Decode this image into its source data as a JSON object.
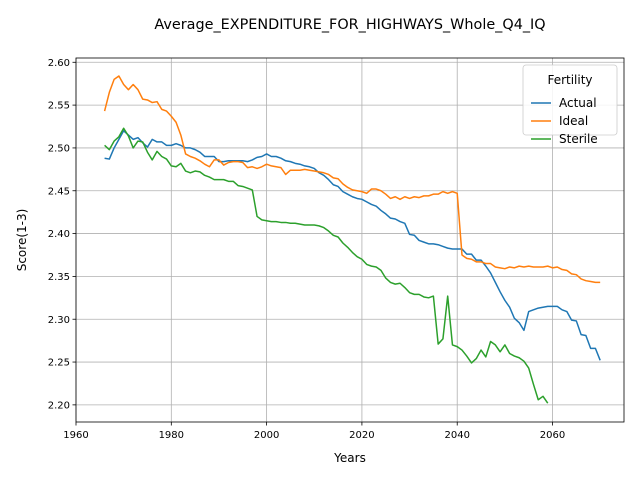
{
  "chart_data": {
    "type": "line",
    "title": "Average_EXPENDITURE_FOR_HIGHWAYS_Whole_Q4_IQ",
    "xlabel": "Years",
    "ylabel": "Score(1-3)",
    "xlim": [
      1960,
      2075
    ],
    "ylim": [
      2.18,
      2.605
    ],
    "xticks": [
      1960,
      1980,
      2000,
      2020,
      2040,
      2060
    ],
    "yticks": [
      2.2,
      2.25,
      2.3,
      2.35,
      2.4,
      2.45,
      2.5,
      2.55,
      2.6
    ],
    "ytick_labels": [
      "2.20",
      "2.25",
      "2.30",
      "2.35",
      "2.40",
      "2.45",
      "2.50",
      "2.55",
      "2.60"
    ],
    "grid": true,
    "legend": {
      "title": "Fertility",
      "position": "top-right"
    },
    "series": [
      {
        "name": "Actual",
        "color": "#1f77b4",
        "points": [
          [
            1966,
            2.488
          ],
          [
            1967,
            2.487
          ],
          [
            1968,
            2.5
          ],
          [
            1969,
            2.51
          ],
          [
            1970,
            2.52
          ],
          [
            1971,
            2.515
          ],
          [
            1972,
            2.51
          ],
          [
            1973,
            2.512
          ],
          [
            1974,
            2.506
          ],
          [
            1975,
            2.501
          ],
          [
            1976,
            2.51
          ],
          [
            1977,
            2.507
          ],
          [
            1978,
            2.507
          ],
          [
            1979,
            2.503
          ],
          [
            1980,
            2.503
          ],
          [
            1981,
            2.505
          ],
          [
            1982,
            2.503
          ],
          [
            1983,
            2.5
          ],
          [
            1984,
            2.5
          ],
          [
            1985,
            2.498
          ],
          [
            1986,
            2.495
          ],
          [
            1987,
            2.49
          ],
          [
            1988,
            2.49
          ],
          [
            1989,
            2.49
          ],
          [
            1990,
            2.484
          ],
          [
            1991,
            2.484
          ],
          [
            1992,
            2.485
          ],
          [
            1993,
            2.485
          ],
          [
            1994,
            2.485
          ],
          [
            1995,
            2.485
          ],
          [
            1996,
            2.484
          ],
          [
            1997,
            2.486
          ],
          [
            1998,
            2.489
          ],
          [
            1999,
            2.49
          ],
          [
            2000,
            2.493
          ],
          [
            2001,
            2.49
          ],
          [
            2002,
            2.49
          ],
          [
            2003,
            2.488
          ],
          [
            2004,
            2.485
          ],
          [
            2005,
            2.484
          ],
          [
            2006,
            2.482
          ],
          [
            2007,
            2.481
          ],
          [
            2008,
            2.479
          ],
          [
            2009,
            2.478
          ],
          [
            2010,
            2.476
          ],
          [
            2011,
            2.471
          ],
          [
            2012,
            2.468
          ],
          [
            2013,
            2.463
          ],
          [
            2014,
            2.457
          ],
          [
            2015,
            2.455
          ],
          [
            2016,
            2.449
          ],
          [
            2017,
            2.446
          ],
          [
            2018,
            2.443
          ],
          [
            2019,
            2.441
          ],
          [
            2020,
            2.44
          ],
          [
            2021,
            2.437
          ],
          [
            2022,
            2.434
          ],
          [
            2023,
            2.432
          ],
          [
            2024,
            2.427
          ],
          [
            2025,
            2.423
          ],
          [
            2026,
            2.418
          ],
          [
            2027,
            2.417
          ],
          [
            2028,
            2.414
          ],
          [
            2029,
            2.412
          ],
          [
            2030,
            2.399
          ],
          [
            2031,
            2.398
          ],
          [
            2032,
            2.392
          ],
          [
            2033,
            2.39
          ],
          [
            2034,
            2.388
          ],
          [
            2035,
            2.388
          ],
          [
            2036,
            2.387
          ],
          [
            2037,
            2.385
          ],
          [
            2038,
            2.383
          ],
          [
            2039,
            2.382
          ],
          [
            2040,
            2.382
          ],
          [
            2041,
            2.382
          ],
          [
            2042,
            2.376
          ],
          [
            2043,
            2.376
          ],
          [
            2044,
            2.369
          ],
          [
            2045,
            2.369
          ],
          [
            2046,
            2.362
          ],
          [
            2047,
            2.354
          ],
          [
            2048,
            2.343
          ],
          [
            2049,
            2.332
          ],
          [
            2050,
            2.322
          ],
          [
            2051,
            2.314
          ],
          [
            2052,
            2.301
          ],
          [
            2053,
            2.296
          ],
          [
            2054,
            2.287
          ],
          [
            2055,
            2.309
          ],
          [
            2056,
            2.311
          ],
          [
            2057,
            2.313
          ],
          [
            2058,
            2.314
          ],
          [
            2059,
            2.315
          ],
          [
            2060,
            2.315
          ],
          [
            2061,
            2.315
          ],
          [
            2062,
            2.311
          ],
          [
            2063,
            2.309
          ],
          [
            2064,
            2.299
          ],
          [
            2065,
            2.298
          ],
          [
            2066,
            2.282
          ],
          [
            2067,
            2.281
          ],
          [
            2068,
            2.266
          ],
          [
            2069,
            2.266
          ],
          [
            2070,
            2.252
          ]
        ]
      },
      {
        "name": "Ideal",
        "color": "#ff7f0e",
        "points": [
          [
            1966,
            2.543
          ],
          [
            1967,
            2.565
          ],
          [
            1968,
            2.58
          ],
          [
            1969,
            2.584
          ],
          [
            1970,
            2.574
          ],
          [
            1971,
            2.568
          ],
          [
            1972,
            2.574
          ],
          [
            1973,
            2.568
          ],
          [
            1974,
            2.557
          ],
          [
            1975,
            2.556
          ],
          [
            1976,
            2.553
          ],
          [
            1977,
            2.554
          ],
          [
            1978,
            2.545
          ],
          [
            1979,
            2.543
          ],
          [
            1980,
            2.537
          ],
          [
            1981,
            2.53
          ],
          [
            1982,
            2.515
          ],
          [
            1983,
            2.493
          ],
          [
            1984,
            2.49
          ],
          [
            1985,
            2.488
          ],
          [
            1986,
            2.485
          ],
          [
            1987,
            2.481
          ],
          [
            1988,
            2.478
          ],
          [
            1989,
            2.486
          ],
          [
            1990,
            2.486
          ],
          [
            1991,
            2.48
          ],
          [
            1992,
            2.483
          ],
          [
            1993,
            2.484
          ],
          [
            1994,
            2.484
          ],
          [
            1995,
            2.483
          ],
          [
            1996,
            2.477
          ],
          [
            1997,
            2.478
          ],
          [
            1998,
            2.476
          ],
          [
            1999,
            2.478
          ],
          [
            2000,
            2.481
          ],
          [
            2001,
            2.479
          ],
          [
            2002,
            2.478
          ],
          [
            2003,
            2.477
          ],
          [
            2004,
            2.469
          ],
          [
            2005,
            2.474
          ],
          [
            2006,
            2.474
          ],
          [
            2007,
            2.474
          ],
          [
            2008,
            2.475
          ],
          [
            2009,
            2.474
          ],
          [
            2010,
            2.473
          ],
          [
            2011,
            2.472
          ],
          [
            2012,
            2.471
          ],
          [
            2013,
            2.469
          ],
          [
            2014,
            2.465
          ],
          [
            2015,
            2.464
          ],
          [
            2016,
            2.458
          ],
          [
            2017,
            2.454
          ],
          [
            2018,
            2.451
          ],
          [
            2019,
            2.45
          ],
          [
            2020,
            2.449
          ],
          [
            2021,
            2.447
          ],
          [
            2022,
            2.452
          ],
          [
            2023,
            2.452
          ],
          [
            2024,
            2.45
          ],
          [
            2025,
            2.446
          ],
          [
            2026,
            2.441
          ],
          [
            2027,
            2.443
          ],
          [
            2028,
            2.44
          ],
          [
            2029,
            2.443
          ],
          [
            2030,
            2.441
          ],
          [
            2031,
            2.443
          ],
          [
            2032,
            2.442
          ],
          [
            2033,
            2.444
          ],
          [
            2034,
            2.444
          ],
          [
            2035,
            2.446
          ],
          [
            2036,
            2.446
          ],
          [
            2037,
            2.449
          ],
          [
            2038,
            2.447
          ],
          [
            2039,
            2.449
          ],
          [
            2040,
            2.447
          ],
          [
            2041,
            2.375
          ],
          [
            2042,
            2.371
          ],
          [
            2043,
            2.37
          ],
          [
            2044,
            2.367
          ],
          [
            2045,
            2.367
          ],
          [
            2046,
            2.365
          ],
          [
            2047,
            2.365
          ],
          [
            2048,
            2.361
          ],
          [
            2049,
            2.36
          ],
          [
            2050,
            2.359
          ],
          [
            2051,
            2.361
          ],
          [
            2052,
            2.36
          ],
          [
            2053,
            2.362
          ],
          [
            2054,
            2.361
          ],
          [
            2055,
            2.362
          ],
          [
            2056,
            2.361
          ],
          [
            2057,
            2.361
          ],
          [
            2058,
            2.361
          ],
          [
            2059,
            2.362
          ],
          [
            2060,
            2.36
          ],
          [
            2061,
            2.361
          ],
          [
            2062,
            2.358
          ],
          [
            2063,
            2.357
          ],
          [
            2064,
            2.353
          ],
          [
            2065,
            2.352
          ],
          [
            2066,
            2.347
          ],
          [
            2067,
            2.345
          ],
          [
            2068,
            2.344
          ],
          [
            2069,
            2.343
          ],
          [
            2070,
            2.343
          ]
        ]
      },
      {
        "name": "Sterile",
        "color": "#2ca02c",
        "points": [
          [
            1966,
            2.503
          ],
          [
            1967,
            2.498
          ],
          [
            1968,
            2.508
          ],
          [
            1969,
            2.513
          ],
          [
            1970,
            2.523
          ],
          [
            1971,
            2.514
          ],
          [
            1972,
            2.5
          ],
          [
            1973,
            2.508
          ],
          [
            1974,
            2.507
          ],
          [
            1975,
            2.495
          ],
          [
            1976,
            2.486
          ],
          [
            1977,
            2.496
          ],
          [
            1978,
            2.49
          ],
          [
            1979,
            2.487
          ],
          [
            1980,
            2.479
          ],
          [
            1981,
            2.478
          ],
          [
            1982,
            2.482
          ],
          [
            1983,
            2.473
          ],
          [
            1984,
            2.471
          ],
          [
            1985,
            2.473
          ],
          [
            1986,
            2.472
          ],
          [
            1987,
            2.468
          ],
          [
            1988,
            2.466
          ],
          [
            1989,
            2.463
          ],
          [
            1990,
            2.463
          ],
          [
            1991,
            2.463
          ],
          [
            1992,
            2.461
          ],
          [
            1993,
            2.461
          ],
          [
            1994,
            2.456
          ],
          [
            1995,
            2.455
          ],
          [
            1996,
            2.453
          ],
          [
            1997,
            2.451
          ],
          [
            1998,
            2.42
          ],
          [
            1999,
            2.416
          ],
          [
            2000,
            2.415
          ],
          [
            2001,
            2.414
          ],
          [
            2002,
            2.414
          ],
          [
            2003,
            2.413
          ],
          [
            2004,
            2.413
          ],
          [
            2005,
            2.412
          ],
          [
            2006,
            2.412
          ],
          [
            2007,
            2.411
          ],
          [
            2008,
            2.41
          ],
          [
            2009,
            2.41
          ],
          [
            2010,
            2.41
          ],
          [
            2011,
            2.409
          ],
          [
            2012,
            2.407
          ],
          [
            2013,
            2.403
          ],
          [
            2014,
            2.398
          ],
          [
            2015,
            2.396
          ],
          [
            2016,
            2.389
          ],
          [
            2017,
            2.384
          ],
          [
            2018,
            2.378
          ],
          [
            2019,
            2.373
          ],
          [
            2020,
            2.37
          ],
          [
            2021,
            2.364
          ],
          [
            2022,
            2.362
          ],
          [
            2023,
            2.361
          ],
          [
            2024,
            2.357
          ],
          [
            2025,
            2.348
          ],
          [
            2026,
            2.343
          ],
          [
            2027,
            2.341
          ],
          [
            2028,
            2.342
          ],
          [
            2029,
            2.337
          ],
          [
            2030,
            2.331
          ],
          [
            2031,
            2.329
          ],
          [
            2032,
            2.329
          ],
          [
            2033,
            2.326
          ],
          [
            2034,
            2.325
          ],
          [
            2035,
            2.327
          ],
          [
            2036,
            2.271
          ],
          [
            2037,
            2.277
          ],
          [
            2038,
            2.327
          ],
          [
            2039,
            2.27
          ],
          [
            2040,
            2.268
          ],
          [
            2041,
            2.264
          ],
          [
            2042,
            2.257
          ],
          [
            2043,
            2.249
          ],
          [
            2044,
            2.254
          ],
          [
            2045,
            2.264
          ],
          [
            2046,
            2.256
          ],
          [
            2047,
            2.274
          ],
          [
            2048,
            2.27
          ],
          [
            2049,
            2.262
          ],
          [
            2050,
            2.27
          ],
          [
            2051,
            2.26
          ],
          [
            2052,
            2.257
          ],
          [
            2053,
            2.255
          ],
          [
            2054,
            2.251
          ],
          [
            2055,
            2.243
          ],
          [
            2056,
            2.224
          ],
          [
            2057,
            2.206
          ],
          [
            2058,
            2.21
          ],
          [
            2059,
            2.202
          ]
        ]
      }
    ]
  }
}
